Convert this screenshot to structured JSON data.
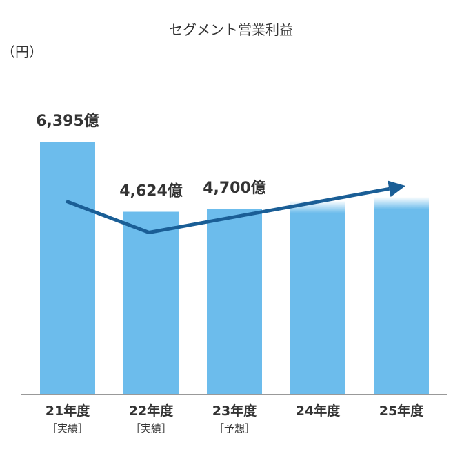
{
  "chart_data": {
    "type": "bar",
    "title": "セグメント営業利益",
    "unit_label": "（円）",
    "categories": [
      {
        "label": "21年度",
        "sublabel": "［実績］"
      },
      {
        "label": "22年度",
        "sublabel": "［実績］"
      },
      {
        "label": "23年度",
        "sublabel": "［予想］"
      },
      {
        "label": "24年度",
        "sublabel": ""
      },
      {
        "label": "25年度",
        "sublabel": ""
      }
    ],
    "values": [
      6395,
      4624,
      4700,
      4900,
      5000
    ],
    "value_labels": [
      "6,395億",
      "4,624億",
      "4,700億",
      "",
      ""
    ],
    "ylim": [
      0,
      7500
    ],
    "grid": false,
    "trend_arrow": {
      "direction": "up-right"
    },
    "colors": {
      "bar": "#6cbcec",
      "arrow": "#1a5e96",
      "axis": "#999999",
      "text": "#333333"
    }
  }
}
